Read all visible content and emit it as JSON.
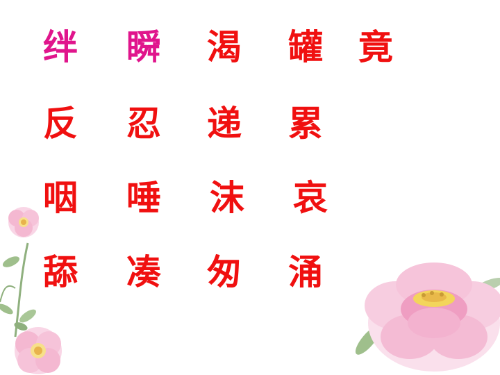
{
  "colors": {
    "pink": "#e0158c",
    "red": "#f01010",
    "flower_petal": "#f7c6dc",
    "flower_center": "#f3d55b",
    "leaf": "#8fb07e"
  },
  "rows": [
    [
      {
        "text": "绊",
        "color": "pink"
      },
      {
        "text": "瞬",
        "color": "pink"
      },
      {
        "text": "渴",
        "color": "red"
      },
      {
        "text": "罐",
        "color": "red"
      },
      {
        "text": "竟",
        "color": "red"
      }
    ],
    [
      {
        "text": "反",
        "color": "red"
      },
      {
        "text": "忍",
        "color": "red"
      },
      {
        "text": "递",
        "color": "red"
      },
      {
        "text": "累",
        "color": "red"
      }
    ],
    [
      {
        "text": "咽",
        "color": "red"
      },
      {
        "text": "唾",
        "color": "red"
      },
      {
        "text": "沫",
        "color": "red"
      },
      {
        "text": "哀",
        "color": "red"
      }
    ],
    [
      {
        "text": "舔",
        "color": "red"
      },
      {
        "text": "凑",
        "color": "red"
      },
      {
        "text": "匆",
        "color": "red"
      },
      {
        "text": "涌",
        "color": "red"
      }
    ]
  ],
  "decorations": [
    "flower-left-icon",
    "flower-right-icon"
  ]
}
